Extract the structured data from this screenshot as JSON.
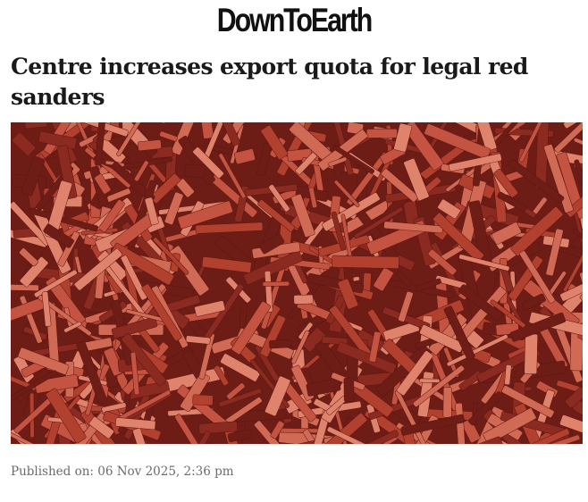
{
  "site": {
    "logo_text": "DownToEarth"
  },
  "article": {
    "title": "Centre increases export quota for legal red sanders",
    "image_subject": "red sanders wood chips",
    "published": "Published on: 06 Nov 2025, 2:36 pm"
  },
  "colors": {
    "chip_dark": "#6e1d16",
    "chip_mid": "#b2402f",
    "chip_light": "#e0836c"
  }
}
